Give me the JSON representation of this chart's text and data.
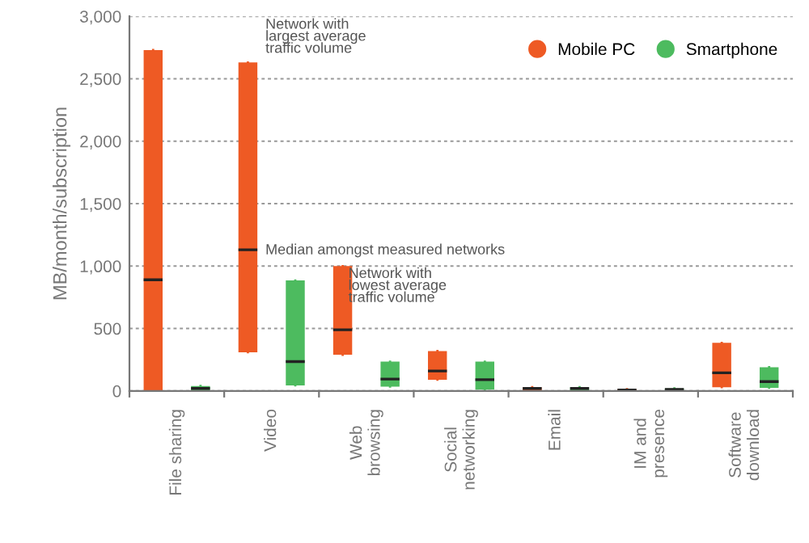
{
  "chart_data": {
    "type": "box",
    "ylabel": "MB/month/subscription",
    "categories": [
      "File sharing",
      "Video",
      "Web\nbrowsing",
      "Social\nnetworking",
      "Email",
      "IM and\npresence",
      "Software\ndownload"
    ],
    "series": [
      {
        "name": "Mobile PC",
        "color": "#ee5a24",
        "boxes": [
          {
            "low": 0,
            "q1": 0,
            "median": 890,
            "q3": 2730,
            "high": 2730
          },
          {
            "low": 310,
            "q1": 310,
            "median": 1130,
            "q3": 2630,
            "high": 2630
          },
          {
            "low": 290,
            "q1": 290,
            "median": 490,
            "q3": 1000,
            "high": 1000
          },
          {
            "low": 90,
            "q1": 90,
            "median": 160,
            "q3": 320,
            "high": 320
          },
          {
            "low": 0,
            "q1": 0,
            "median": 20,
            "q3": 30,
            "high": 30
          },
          {
            "low": 0,
            "q1": 0,
            "median": 8,
            "q3": 15,
            "high": 15
          },
          {
            "low": 30,
            "q1": 30,
            "median": 145,
            "q3": 385,
            "high": 385
          }
        ]
      },
      {
        "name": "Smartphone",
        "color": "#4dbb5f",
        "boxes": [
          {
            "low": 5,
            "q1": 5,
            "median": 20,
            "q3": 40,
            "high": 40
          },
          {
            "low": 45,
            "q1": 45,
            "median": 235,
            "q3": 885,
            "high": 885
          },
          {
            "low": 35,
            "q1": 35,
            "median": 95,
            "q3": 235,
            "high": 235
          },
          {
            "low": 10,
            "q1": 10,
            "median": 90,
            "q3": 235,
            "high": 235
          },
          {
            "low": 5,
            "q1": 5,
            "median": 20,
            "q3": 30,
            "high": 30
          },
          {
            "low": 0,
            "q1": 0,
            "median": 12,
            "q3": 20,
            "high": 20
          },
          {
            "low": 25,
            "q1": 25,
            "median": 75,
            "q3": 190,
            "high": 190
          }
        ]
      }
    ],
    "ylim": [
      0,
      3000
    ],
    "yticks": [
      {
        "value": 0,
        "label": "0"
      },
      {
        "value": 500,
        "label": "500"
      },
      {
        "value": 1000,
        "label": "1,000"
      },
      {
        "value": 1500,
        "label": "1,500"
      },
      {
        "value": 2000,
        "label": "2,000"
      },
      {
        "value": 2500,
        "label": "2,500"
      },
      {
        "value": 3000,
        "label": "3,000"
      }
    ],
    "grid": "y",
    "legend": "top right",
    "annotations": [
      "Network with\nlargest average\ntraffic volume",
      "Median amongst measured networks",
      "Network with\nlowest average\ntraffic volume"
    ]
  }
}
